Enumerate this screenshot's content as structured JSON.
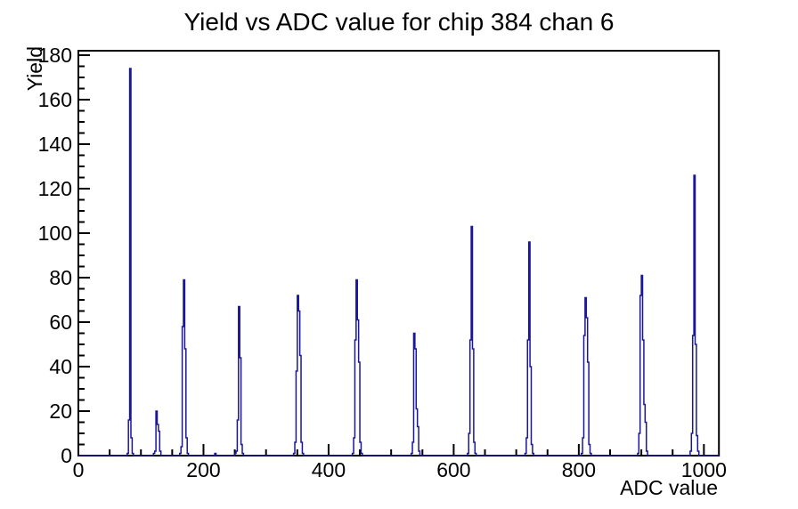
{
  "chart_data": {
    "type": "line",
    "subtype": "root-histogram-spikes",
    "title": "Yield vs ADC value for chip 384 chan 6",
    "xlabel": "ADC value",
    "ylabel": "Yield",
    "xlim": [
      0,
      1024
    ],
    "ylim": [
      0,
      182
    ],
    "x_major_ticks": [
      0,
      200,
      400,
      600,
      800,
      1000
    ],
    "x_minor_step": 50,
    "y_major_ticks": [
      0,
      20,
      40,
      60,
      80,
      100,
      120,
      140,
      160,
      180
    ],
    "y_minor_step": 5,
    "grid": false,
    "legend": false,
    "line_color": "#1a169b",
    "frame_color": "#000000",
    "background_color": "#ffffff",
    "bin_width": 2,
    "peaks": [
      {
        "start": 78,
        "counts": [
          1,
          16,
          174,
          8,
          1
        ]
      },
      {
        "start": 120,
        "counts": [
          1,
          2,
          20,
          14,
          11,
          2
        ]
      },
      {
        "start": 162,
        "counts": [
          1,
          4,
          58,
          79,
          48,
          8,
          1
        ]
      },
      {
        "start": 218,
        "counts": [
          1
        ]
      },
      {
        "start": 250,
        "counts": [
          1,
          2,
          16,
          67,
          44,
          5,
          1
        ]
      },
      {
        "start": 344,
        "counts": [
          1,
          6,
          38,
          72,
          65,
          45,
          6,
          1
        ]
      },
      {
        "start": 438,
        "counts": [
          1,
          8,
          52,
          79,
          61,
          42,
          6,
          1
        ]
      },
      {
        "start": 532,
        "counts": [
          1,
          6,
          55,
          48,
          21,
          13,
          2
        ]
      },
      {
        "start": 622,
        "counts": [
          1,
          10,
          52,
          103,
          48,
          6,
          1
        ]
      },
      {
        "start": 714,
        "counts": [
          1,
          8,
          52,
          96,
          40,
          5,
          1
        ]
      },
      {
        "start": 804,
        "counts": [
          1,
          8,
          54,
          71,
          62,
          42,
          5,
          1
        ]
      },
      {
        "start": 894,
        "counts": [
          1,
          10,
          72,
          81,
          52,
          23,
          15,
          2
        ]
      },
      {
        "start": 978,
        "counts": [
          2,
          10,
          54,
          126,
          50,
          9,
          2
        ]
      }
    ],
    "peak_maxima": [
      {
        "adc": 83,
        "yield": 174
      },
      {
        "adc": 125,
        "yield": 20
      },
      {
        "adc": 169,
        "yield": 79
      },
      {
        "adc": 257,
        "yield": 67
      },
      {
        "adc": 351,
        "yield": 72
      },
      {
        "adc": 445,
        "yield": 79
      },
      {
        "adc": 537,
        "yield": 55
      },
      {
        "adc": 629,
        "yield": 103
      },
      {
        "adc": 721,
        "yield": 96
      },
      {
        "adc": 811,
        "yield": 71
      },
      {
        "adc": 901,
        "yield": 81
      },
      {
        "adc": 985,
        "yield": 126
      }
    ]
  }
}
